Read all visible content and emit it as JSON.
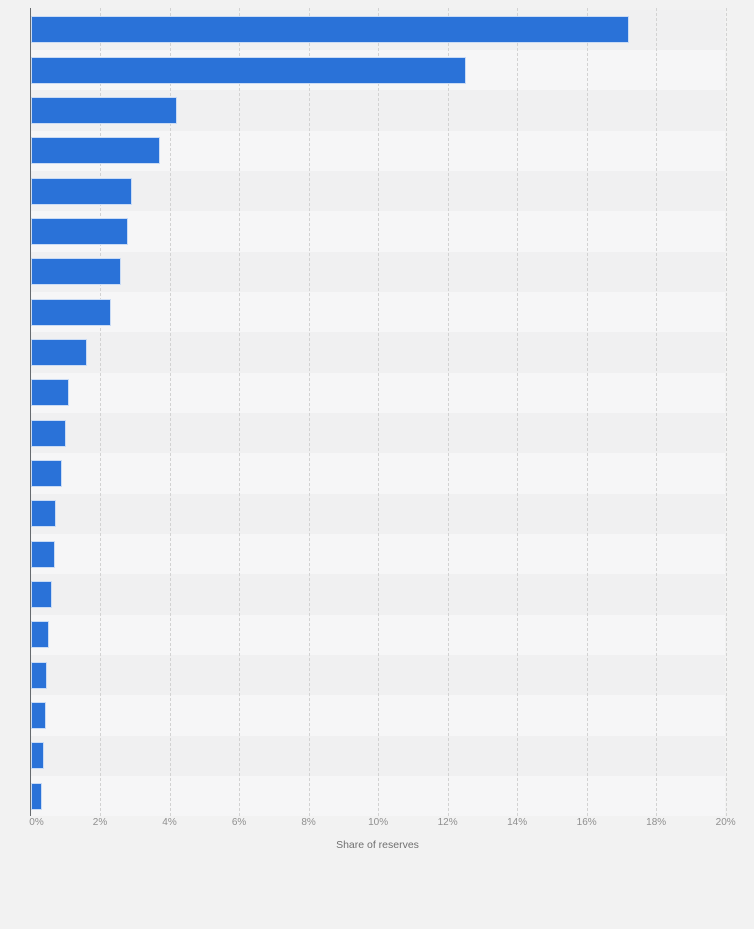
{
  "page": {
    "background_color": "#f2f2f2"
  },
  "chart_data": {
    "type": "bar",
    "orientation": "horizontal",
    "title": "",
    "xlabel": "Share of reserves",
    "ylabel": "",
    "xlim": [
      0,
      20
    ],
    "x_tick_step_percent": 2,
    "x_ticks": [
      "0%",
      "2%",
      "4%",
      "6%",
      "8%",
      "10%",
      "12%",
      "14%",
      "16%",
      "18%",
      "20%"
    ],
    "categories_visible": false,
    "values_percent": [
      17.2,
      12.5,
      4.2,
      3.7,
      2.9,
      2.8,
      2.6,
      2.3,
      1.6,
      1.1,
      1.0,
      0.9,
      0.72,
      0.68,
      0.6,
      0.53,
      0.45,
      0.42,
      0.37,
      0.31
    ],
    "bar_color": "#2a72d8",
    "grid": "vertical-dashed",
    "legend": "none",
    "row_stripe_colors": [
      "#f0f0f1",
      "#f6f6f7"
    ]
  }
}
